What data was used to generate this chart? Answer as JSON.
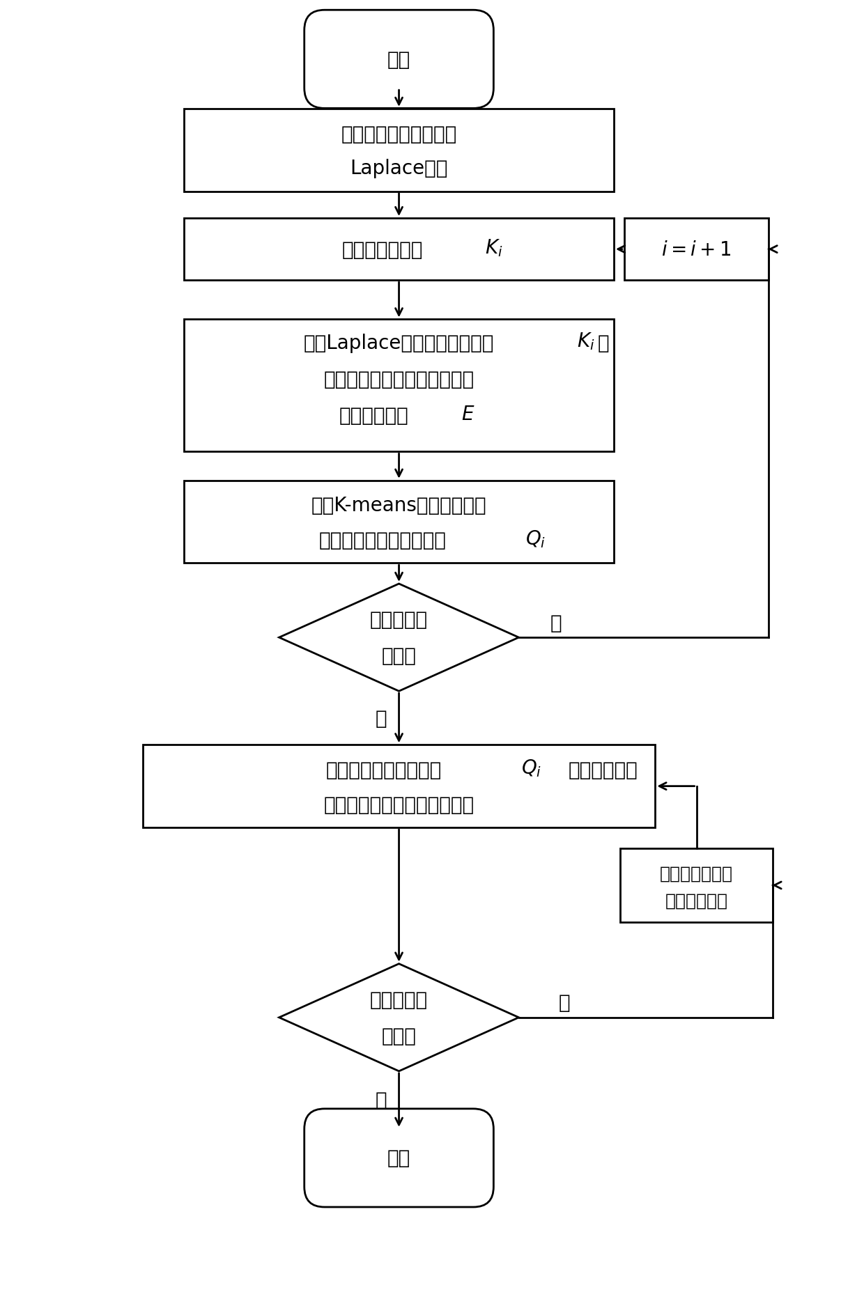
{
  "bg_color": "#ffffff",
  "line_color": "#000000",
  "text_color": "#000000",
  "fig_width": 12.4,
  "fig_height": 18.56,
  "start_label": "开始",
  "end_label": "结束",
  "box1_label_l1": "基于电网拓扑模型求解",
  "box1_label_l2": "Laplace矩阵",
  "box2_label": "设置初始分区数",
  "box2_label_ki": "K",
  "box_ii_label": "i = i+1",
  "box3_label_l1": "求解Laplace矩阵除零外最小的",
  "box3_label_ki": "K",
  "box3_label_l2": "个",
  "box3_label_l3": "特征值对应特征向量，组成低",
  "box3_label_l4": "维度样本矩阵",
  "box3_label_E": "E",
  "box4_label_l1": "利用K-means算法获取分区",
  "box4_label_l2": "结果，计算分区的模块度",
  "box4_label_Qi": "Q",
  "dia1_label_l1": "是否达到最",
  "dia1_label_l2": "大迭代",
  "no1_label": "否",
  "yes1_label": "是",
  "box5_label_l1": "对比各分区方案模块度",
  "box5_label_Qi": "Q",
  "box5_label_l2": "，取其中最大",
  "box5_label_l3": "值所对应的方案作为最佳方案",
  "box_adj_label_l1": "根据可划分节点",
  "box_adj_label_l2": "调整分区方案",
  "dia2_label_l1": "分区校验满",
  "dia2_label_l2": "足条件",
  "no2_label": "否",
  "yes2_label": "是",
  "lw": 2.0,
  "arrow_ms": 18
}
